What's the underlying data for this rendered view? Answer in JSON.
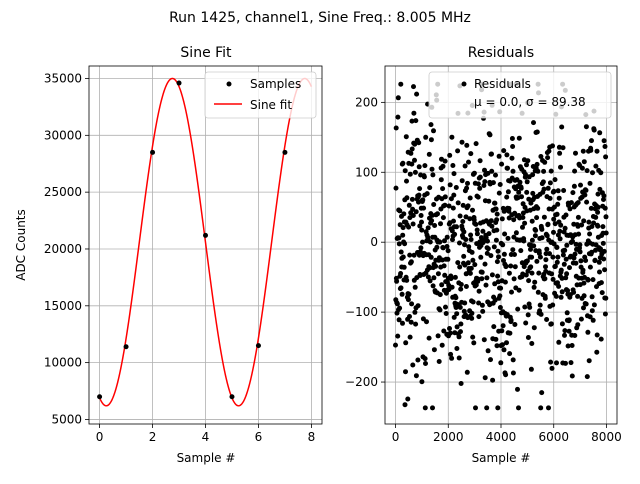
{
  "figure": {
    "suptitle": "Run 1425, channel1, Sine Freq.: 8.005 MHz"
  },
  "chart_data": [
    {
      "type": "line",
      "title": "Sine Fit",
      "xlabel": "Sample #",
      "ylabel": "ADC Counts",
      "xlim": [
        -0.4,
        8.4
      ],
      "ylim": [
        4600,
        36100
      ],
      "xticks": [
        0,
        2,
        4,
        6,
        8
      ],
      "yticks": [
        5000,
        10000,
        15000,
        20000,
        25000,
        30000,
        35000
      ],
      "grid": true,
      "legend_position": "upper right",
      "series": [
        {
          "name": "Samples",
          "style": "points",
          "color": "#000000",
          "x": [
            0,
            1,
            2,
            3,
            4,
            5,
            6,
            7
          ],
          "y": [
            7000,
            11400,
            28500,
            34600,
            21200,
            7000,
            11500,
            28500
          ]
        },
        {
          "name": "Sine fit",
          "style": "line",
          "color": "#ff0000",
          "x_range": [
            0,
            8
          ],
          "amplitude": 14400,
          "offset": 20600,
          "period_samples": 4.99688,
          "peak_at_sample": 2.75
        }
      ]
    },
    {
      "type": "scatter",
      "title": "Residuals",
      "xlabel": "Sample #",
      "xlim": [
        -400,
        8400
      ],
      "ylim": [
        -260,
        252
      ],
      "xticks": [
        0,
        2000,
        4000,
        6000,
        8000
      ],
      "yticks": [
        -200,
        -100,
        0,
        100,
        200
      ],
      "grid": true,
      "legend_position": "upper right",
      "series": [
        {
          "name": "Residuals",
          "legend_stats": "μ = 0.0, σ = 89.38",
          "color": "#000000",
          "n_points": 8000,
          "x_range": [
            0,
            7999
          ],
          "mean": 0.0,
          "std": 89.38,
          "observed_min": -237,
          "observed_max": 226
        }
      ]
    }
  ]
}
